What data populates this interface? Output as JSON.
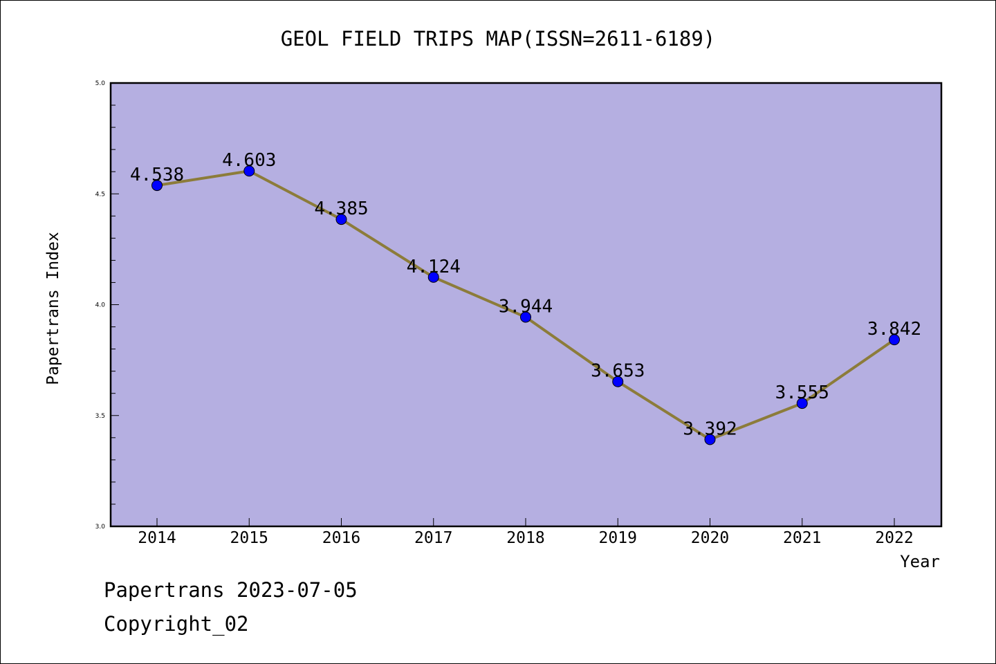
{
  "chart_data": {
    "type": "line",
    "title": "GEOL FIELD TRIPS MAP(ISSN=2611-6189)",
    "xlabel": "Year",
    "ylabel": "Papertrans Index",
    "categories": [
      "2014",
      "2015",
      "2016",
      "2017",
      "2018",
      "2019",
      "2020",
      "2021",
      "2022"
    ],
    "values": [
      4.538,
      4.603,
      4.385,
      4.124,
      3.944,
      3.653,
      3.392,
      3.555,
      3.842
    ],
    "data_labels": [
      "4.538",
      "4.603",
      "4.385",
      "4.124",
      "3.944",
      "3.653",
      "3.392",
      "3.555",
      "3.842"
    ],
    "ylim": [
      3.0,
      5.0
    ],
    "yticks": [
      3.0,
      3.5,
      4.0,
      4.5,
      5.0
    ],
    "ytick_labels": [
      "3.0",
      "3.5",
      "4.0",
      "4.5",
      "5.0"
    ],
    "grid": false,
    "legend": "none",
    "colors": {
      "plot_background": "#b5afe1",
      "line": "#8c7c3a",
      "marker": "#0000ff",
      "axis": "#000000"
    }
  },
  "footer": {
    "date_text": "Papertrans 2023-07-05",
    "copyright_text": "Copyright_02"
  }
}
